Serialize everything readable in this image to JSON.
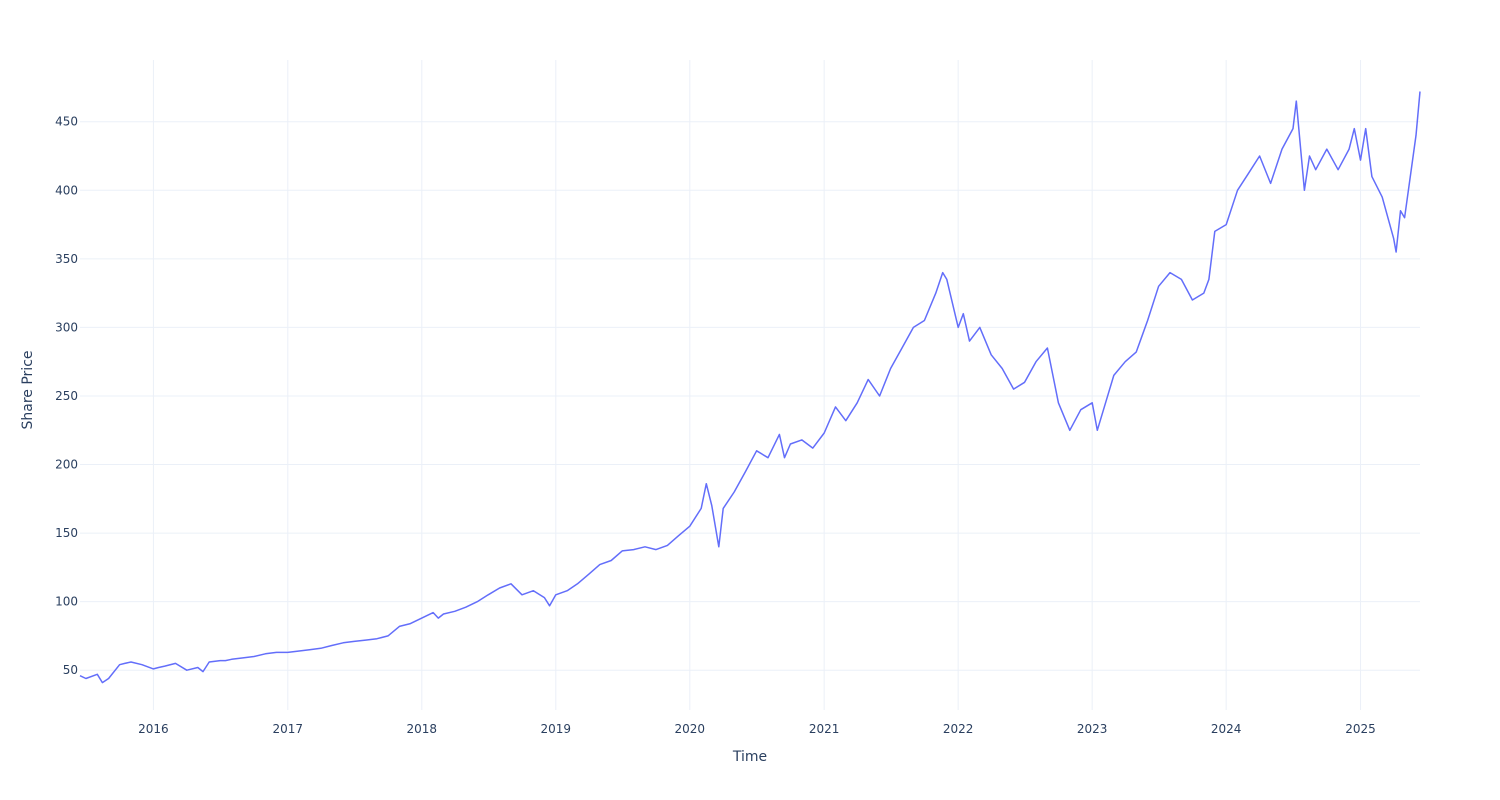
{
  "chart_data": {
    "type": "line",
    "title": "",
    "xlabel": "Time",
    "ylabel": "Share Price",
    "grid": true,
    "legend": "none",
    "xlim": [
      "2015-06-15",
      "2025-06-12"
    ],
    "ylim": [
      21,
      495
    ],
    "x_ticks": [
      "2016",
      "2017",
      "2018",
      "2019",
      "2020",
      "2021",
      "2022",
      "2023",
      "2024",
      "2025"
    ],
    "y_ticks": [
      50,
      100,
      150,
      200,
      250,
      300,
      350,
      400,
      450
    ],
    "line_color": "#636efa",
    "grid_color": "#ebf0f8",
    "text_color": "#2a3f5f",
    "series": [
      {
        "x": [
          "2015-06-15",
          "2015-07-01",
          "2015-08-01",
          "2015-08-15",
          "2015-09-01",
          "2015-10-01",
          "2015-10-15",
          "2015-11-01",
          "2015-12-01",
          "2016-01-01",
          "2016-01-15",
          "2016-02-01",
          "2016-03-01",
          "2016-04-01",
          "2016-05-01",
          "2016-05-15",
          "2016-06-01",
          "2016-07-01",
          "2016-07-15",
          "2016-08-01",
          "2016-09-01",
          "2016-10-01",
          "2016-11-01",
          "2016-12-01",
          "2017-01-01",
          "2017-02-01",
          "2017-03-01",
          "2017-04-01",
          "2017-05-01",
          "2017-06-01",
          "2017-07-01",
          "2017-08-01",
          "2017-09-01",
          "2017-10-01",
          "2017-11-01",
          "2017-12-01",
          "2018-01-01",
          "2018-02-01",
          "2018-02-15",
          "2018-03-01",
          "2018-04-01",
          "2018-05-01",
          "2018-06-01",
          "2018-07-01",
          "2018-08-01",
          "2018-09-01",
          "2018-10-01",
          "2018-11-01",
          "2018-12-01",
          "2018-12-15",
          "2019-01-01",
          "2019-02-01",
          "2019-03-01",
          "2019-04-01",
          "2019-05-01",
          "2019-06-01",
          "2019-07-01",
          "2019-08-01",
          "2019-09-01",
          "2019-10-01",
          "2019-11-01",
          "2019-12-01",
          "2020-01-01",
          "2020-02-01",
          "2020-02-15",
          "2020-03-01",
          "2020-03-20",
          "2020-04-01",
          "2020-05-01",
          "2020-06-01",
          "2020-07-01",
          "2020-08-01",
          "2020-09-01",
          "2020-09-15",
          "2020-10-01",
          "2020-11-01",
          "2020-12-01",
          "2021-01-01",
          "2021-02-01",
          "2021-03-01",
          "2021-04-01",
          "2021-05-01",
          "2021-06-01",
          "2021-07-01",
          "2021-08-01",
          "2021-09-01",
          "2021-10-01",
          "2021-11-01",
          "2021-11-20",
          "2021-12-01",
          "2022-01-01",
          "2022-01-15",
          "2022-02-01",
          "2022-03-01",
          "2022-04-01",
          "2022-05-01",
          "2022-06-01",
          "2022-07-01",
          "2022-08-01",
          "2022-09-01",
          "2022-10-01",
          "2022-11-01",
          "2022-12-01",
          "2023-01-01",
          "2023-01-15",
          "2023-02-01",
          "2023-03-01",
          "2023-04-01",
          "2023-05-01",
          "2023-06-01",
          "2023-07-01",
          "2023-08-01",
          "2023-09-01",
          "2023-10-01",
          "2023-11-01",
          "2023-11-15",
          "2023-12-01",
          "2024-01-01",
          "2024-02-01",
          "2024-03-01",
          "2024-04-01",
          "2024-05-01",
          "2024-06-01",
          "2024-07-01",
          "2024-07-10",
          "2024-08-01",
          "2024-08-15",
          "2024-09-01",
          "2024-10-01",
          "2024-11-01",
          "2024-12-01",
          "2024-12-15",
          "2025-01-01",
          "2025-01-15",
          "2025-02-01",
          "2025-03-01",
          "2025-04-01",
          "2025-04-08",
          "2025-04-20",
          "2025-05-01",
          "2025-06-01",
          "2025-06-12"
        ],
        "y": [
          46,
          44,
          47,
          41,
          44,
          54,
          55,
          56,
          54,
          51,
          52,
          53,
          55,
          50,
          52,
          49,
          56,
          57,
          57,
          58,
          59,
          60,
          62,
          63,
          63,
          64,
          65,
          66,
          68,
          70,
          71,
          72,
          73,
          75,
          82,
          84,
          88,
          92,
          88,
          91,
          93,
          96,
          100,
          105,
          110,
          113,
          105,
          108,
          103,
          97,
          105,
          108,
          113,
          120,
          127,
          130,
          137,
          138,
          140,
          138,
          141,
          148,
          155,
          168,
          186,
          170,
          140,
          168,
          180,
          195,
          210,
          205,
          222,
          205,
          215,
          218,
          212,
          223,
          242,
          232,
          245,
          262,
          250,
          270,
          285,
          300,
          305,
          325,
          340,
          335,
          300,
          310,
          290,
          300,
          280,
          270,
          255,
          260,
          275,
          285,
          245,
          225,
          240,
          245,
          225,
          240,
          265,
          275,
          282,
          305,
          330,
          340,
          335,
          320,
          325,
          335,
          370,
          375,
          400,
          412,
          425,
          405,
          430,
          445,
          465,
          400,
          425,
          415,
          430,
          415,
          430,
          445,
          422,
          445,
          410,
          395,
          365,
          355,
          385,
          380,
          440,
          472
        ]
      }
    ]
  }
}
